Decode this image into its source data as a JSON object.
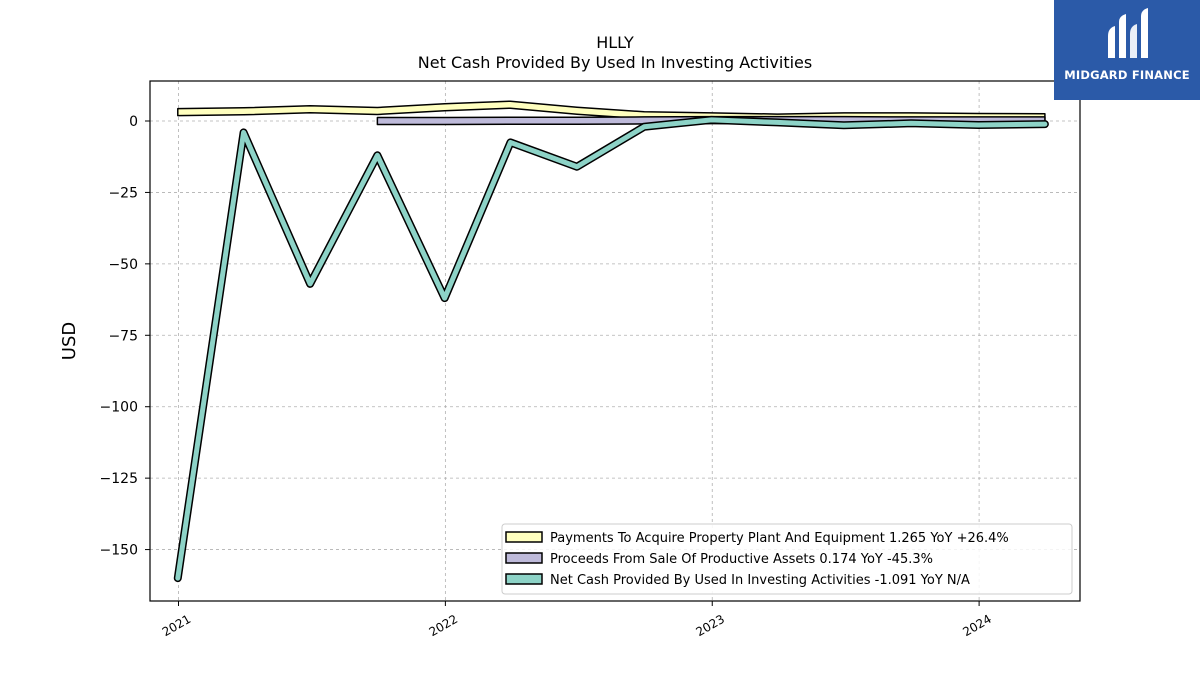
{
  "brand": {
    "name": "MIDGARD FINANCE",
    "logo_bg": "#2b5aa8"
  },
  "chart_data": {
    "type": "line",
    "title": "HLLY",
    "subtitle": "Net Cash Provided By Used In Investing Activities",
    "ylabel": "USD",
    "xlabel": "",
    "xlim": [
      "2020-11-23",
      "2024-05-18"
    ],
    "ylim": [
      -168,
      14
    ],
    "yticks": [
      0,
      -25,
      -50,
      -75,
      -100,
      -125,
      -150
    ],
    "ytick_labels": [
      "0",
      "−25",
      "−50",
      "−75",
      "−100",
      "−125",
      "−150"
    ],
    "xticks": [
      "2021-01-01",
      "2022-01-01",
      "2023-01-01",
      "2024-01-01"
    ],
    "xtick_labels": [
      "2021",
      "2022",
      "2023",
      "2024"
    ],
    "grid": true,
    "legend_position": "lower-right",
    "series": [
      {
        "name": "Payments To Acquire Property Plant And Equipment",
        "legend_label": "Payments To Acquire Property Plant And Equipment  1.265 YoY +26.4%",
        "color": "#ffffbf",
        "kind": "band",
        "x": [
          "2020-12-31",
          "2021-03-31",
          "2021-06-30",
          "2021-09-30",
          "2021-12-31",
          "2022-03-31",
          "2022-06-30",
          "2022-09-30",
          "2022-12-31",
          "2023-03-31",
          "2023-06-30",
          "2023-09-30",
          "2023-12-31",
          "2024-03-31"
        ],
        "values": [
          3.1,
          3.4,
          4.1,
          3.5,
          4.8,
          5.7,
          3.6,
          2.0,
          1.6,
          1.2,
          1.6,
          1.6,
          1.4,
          1.3
        ]
      },
      {
        "name": "Proceeds From Sale Of Productive Assets",
        "legend_label": "Proceeds From Sale Of Productive Assets  0.174 YoY -45.3%",
        "color": "#bebada",
        "kind": "band",
        "x": [
          "2021-09-30",
          "2021-12-31",
          "2022-03-31",
          "2022-06-30",
          "2022-09-30",
          "2022-12-31",
          "2023-03-31",
          "2023-06-30",
          "2023-09-30",
          "2023-12-31",
          "2024-03-31"
        ],
        "values": [
          0.0,
          0.0,
          0.1,
          0.1,
          0.2,
          0.3,
          0.3,
          0.3,
          0.2,
          0.2,
          0.2
        ]
      },
      {
        "name": "Net Cash Provided By Used In Investing Activities",
        "legend_label": "Net Cash Provided By Used In Investing Activities  -1.091 YoY N/A",
        "color": "#8dd3c7",
        "kind": "line",
        "x": [
          "2020-12-31",
          "2021-03-31",
          "2021-06-30",
          "2021-09-30",
          "2021-12-31",
          "2022-03-31",
          "2022-06-30",
          "2022-09-30",
          "2022-12-31",
          "2023-03-31",
          "2023-06-30",
          "2023-09-30",
          "2023-12-31",
          "2024-03-31"
        ],
        "values": [
          -160.0,
          -4.0,
          -57.0,
          -12.0,
          -62.0,
          -7.5,
          -16.0,
          -2.0,
          0.4,
          -0.5,
          -1.5,
          -0.8,
          -1.4,
          -1.1
        ]
      }
    ]
  }
}
